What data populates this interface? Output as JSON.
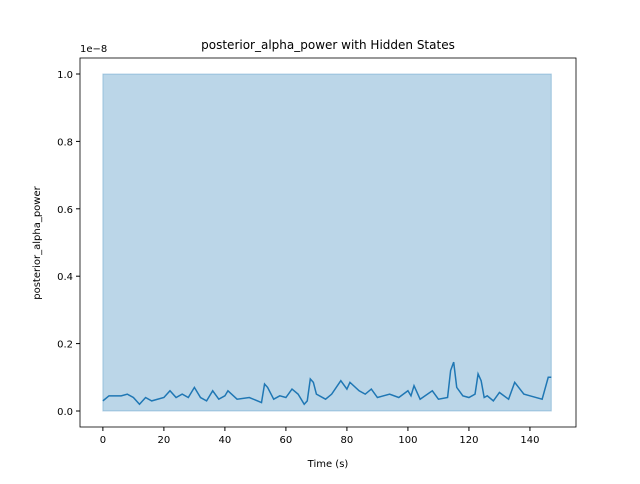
{
  "chart_data": {
    "type": "line",
    "title": "posterior_alpha_power with Hidden States",
    "x_label": "Time (s)",
    "y_label": "posterior_alpha_power",
    "y_offset_text": "1e−8",
    "x": [
      0,
      2,
      4,
      6,
      8,
      10,
      12,
      14,
      16,
      20,
      22,
      24,
      26,
      28,
      30,
      32,
      34,
      36,
      38,
      40,
      41,
      44,
      48,
      52,
      53,
      54,
      56,
      58,
      60,
      62,
      64,
      66,
      67,
      68,
      69,
      70,
      73,
      75,
      78,
      80,
      81,
      84,
      86,
      88,
      90,
      94,
      97,
      100,
      101,
      102,
      104,
      108,
      110,
      113,
      114,
      115,
      116,
      118,
      120,
      122,
      123,
      124,
      125,
      126,
      128,
      130,
      133,
      135,
      138,
      140,
      144,
      146,
      147
    ],
    "series": [
      {
        "color": "#1f77b4",
        "values": [
          0.03,
          0.045,
          0.045,
          0.045,
          0.05,
          0.04,
          0.02,
          0.04,
          0.03,
          0.04,
          0.06,
          0.04,
          0.05,
          0.04,
          0.07,
          0.04,
          0.03,
          0.06,
          0.035,
          0.045,
          0.06,
          0.035,
          0.04,
          0.025,
          0.08,
          0.07,
          0.035,
          0.045,
          0.04,
          0.065,
          0.05,
          0.02,
          0.03,
          0.095,
          0.085,
          0.05,
          0.035,
          0.05,
          0.09,
          0.065,
          0.085,
          0.06,
          0.05,
          0.065,
          0.04,
          0.05,
          0.04,
          0.06,
          0.045,
          0.075,
          0.035,
          0.06,
          0.035,
          0.04,
          0.12,
          0.145,
          0.07,
          0.045,
          0.04,
          0.05,
          0.11,
          0.09,
          0.04,
          0.045,
          0.03,
          0.055,
          0.035,
          0.085,
          0.05,
          0.045,
          0.035,
          0.1,
          0.1
        ]
      }
    ],
    "shaded_region": {
      "x0": 0,
      "x1": 147,
      "y0": 0,
      "y1": 1.0,
      "color": "#1f77b4"
    },
    "xlim": [
      -7.5,
      155.1
    ],
    "ylim": [
      -0.0475,
      1.0475
    ],
    "xticks": [
      0,
      20,
      40,
      60,
      80,
      100,
      120,
      140
    ],
    "yticks": [
      {
        "value": 0,
        "label": "0.0"
      },
      0.2,
      0.4,
      0.6,
      0.8,
      {
        "value": 1,
        "label": "1.0"
      }
    ]
  }
}
